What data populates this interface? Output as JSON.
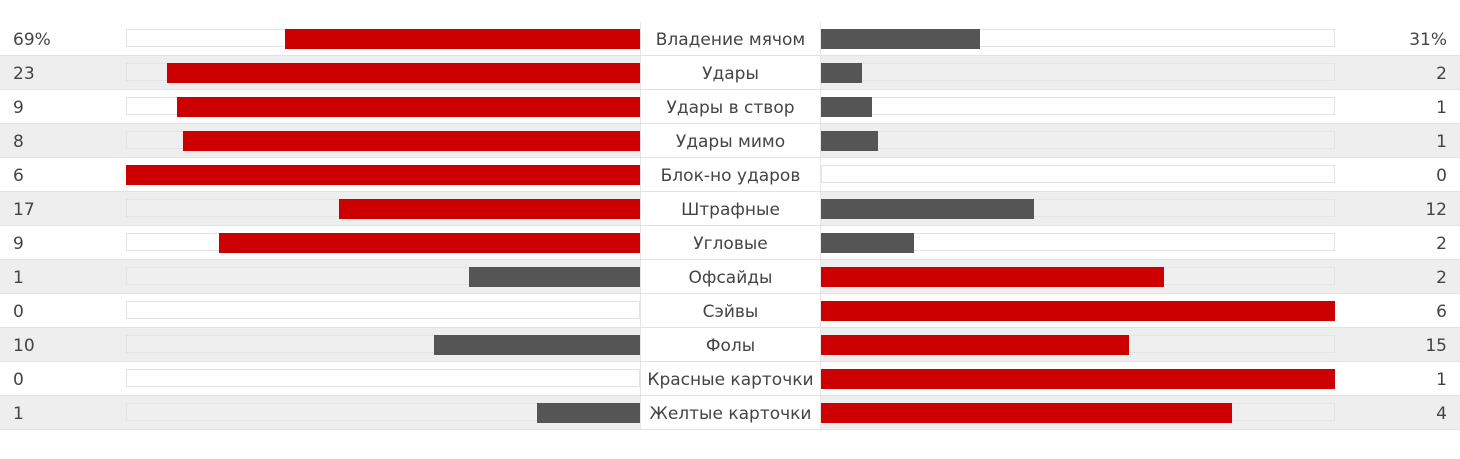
{
  "colors": {
    "leading": "#cc0000",
    "trailing": "#555555"
  },
  "stats": [
    {
      "label": "Владение мячом",
      "home": "69%",
      "away": "31%",
      "home_value": 69,
      "away_value": 31,
      "home_leads": true
    },
    {
      "label": "Удары",
      "home": "23",
      "away": "2",
      "home_value": 23,
      "away_value": 2,
      "home_leads": true
    },
    {
      "label": "Удары в створ",
      "home": "9",
      "away": "1",
      "home_value": 9,
      "away_value": 1,
      "home_leads": true
    },
    {
      "label": "Удары мимо",
      "home": "8",
      "away": "1",
      "home_value": 8,
      "away_value": 1,
      "home_leads": true
    },
    {
      "label": "Блок-но ударов",
      "home": "6",
      "away": "0",
      "home_value": 6,
      "away_value": 0,
      "home_leads": true
    },
    {
      "label": "Штрафные",
      "home": "17",
      "away": "12",
      "home_value": 17,
      "away_value": 12,
      "home_leads": true
    },
    {
      "label": "Угловые",
      "home": "9",
      "away": "2",
      "home_value": 9,
      "away_value": 2,
      "home_leads": true
    },
    {
      "label": "Офсайды",
      "home": "1",
      "away": "2",
      "home_value": 1,
      "away_value": 2,
      "home_leads": false
    },
    {
      "label": "Сэйвы",
      "home": "0",
      "away": "6",
      "home_value": 0,
      "away_value": 6,
      "home_leads": false
    },
    {
      "label": "Фолы",
      "home": "10",
      "away": "15",
      "home_value": 10,
      "away_value": 15,
      "home_leads": false
    },
    {
      "label": "Красные карточки",
      "home": "0",
      "away": "1",
      "home_value": 0,
      "away_value": 1,
      "home_leads": false
    },
    {
      "label": "Желтые карточки",
      "home": "1",
      "away": "4",
      "home_value": 1,
      "away_value": 4,
      "home_leads": false
    }
  ]
}
